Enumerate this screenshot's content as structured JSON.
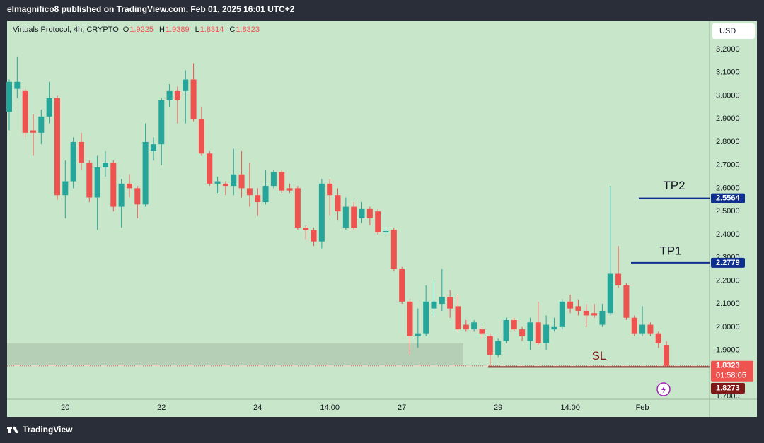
{
  "header": "elmagnifico8 published on TradingView.com, Feb 01, 2025 16:01 UTC+2",
  "footer_logo": "TradingView",
  "chart_data": {
    "type": "candlestick",
    "title": "Virtuals Protocol, 4h, CRYPTO",
    "ohlc_prefixes": [
      "O",
      "H",
      "L",
      "C"
    ],
    "currency": "USD",
    "countdown": "01:58:05",
    "up_color": "#26a69a",
    "down_color": "#ef5350",
    "grid": false,
    "categories": [
      null,
      null,
      null,
      null,
      null,
      null,
      null,
      "20",
      null,
      null,
      null,
      null,
      null,
      null,
      null,
      null,
      null,
      null,
      null,
      "22",
      null,
      null,
      null,
      null,
      null,
      null,
      null,
      null,
      null,
      null,
      null,
      "24",
      null,
      null,
      null,
      null,
      null,
      null,
      null,
      null,
      "14:00",
      null,
      null,
      null,
      null,
      null,
      null,
      null,
      null,
      "27",
      null,
      null,
      null,
      null,
      null,
      null,
      null,
      null,
      null,
      null,
      null,
      "29",
      null,
      null,
      null,
      null,
      null,
      null,
      null,
      null,
      "14:00",
      null,
      null,
      null,
      null,
      null,
      null,
      null,
      null,
      "Feb",
      null,
      null,
      null
    ],
    "open": [
      2.93,
      3.03,
      3.02,
      2.85,
      2.84,
      2.91,
      2.99,
      2.57,
      2.63,
      2.8,
      2.71,
      2.56,
      2.69,
      2.71,
      2.52,
      2.62,
      2.6,
      2.53,
      2.76,
      2.79,
      2.98,
      3.02,
      3.02,
      3.07,
      2.9,
      2.75,
      2.62,
      2.62,
      2.61,
      2.66,
      2.6,
      2.57,
      2.54,
      2.61,
      2.67,
      2.6,
      2.6,
      2.43,
      2.42,
      2.37,
      2.62,
      2.57,
      2.43,
      2.52,
      2.47,
      2.51,
      2.5,
      2.41,
      2.42,
      2.25,
      2.11,
      1.96,
      1.97,
      2.08,
      2.1,
      2.13,
      2.09,
      2.01,
      1.99,
      1.99,
      1.96,
      1.88,
      1.94,
      2.03,
      1.99,
      1.94,
      2.02,
      1.93,
      1.99,
      2.0,
      2.11,
      2.09,
      2.07,
      2.06,
      2.01,
      2.06,
      2.23,
      2.18,
      2.04,
      1.97,
      2.01,
      1.97,
      1.9225
    ],
    "high": [
      3.07,
      3.17,
      3.03,
      2.92,
      2.94,
      3.06,
      3.0,
      2.72,
      2.82,
      2.84,
      2.72,
      2.74,
      2.76,
      2.72,
      2.64,
      2.66,
      2.61,
      2.88,
      2.82,
      2.99,
      3.05,
      3.04,
      3.11,
      3.14,
      2.95,
      2.76,
      2.65,
      2.63,
      2.77,
      2.76,
      2.71,
      2.6,
      2.68,
      2.68,
      2.68,
      2.62,
      2.61,
      2.44,
      2.43,
      2.64,
      2.64,
      2.6,
      2.56,
      2.54,
      2.54,
      2.52,
      2.51,
      2.43,
      2.43,
      2.26,
      2.12,
      2.08,
      2.18,
      2.2,
      2.25,
      2.16,
      2.14,
      2.03,
      2.03,
      2.0,
      1.97,
      1.95,
      2.04,
      2.04,
      2.0,
      2.04,
      2.11,
      2.05,
      2.04,
      2.12,
      2.14,
      2.12,
      2.1,
      2.1,
      2.1,
      2.61,
      2.35,
      2.19,
      2.05,
      2.09,
      2.02,
      1.98,
      1.9389
    ],
    "low": [
      2.85,
      2.99,
      2.82,
      2.74,
      2.79,
      2.88,
      2.55,
      2.47,
      2.6,
      2.68,
      2.54,
      2.42,
      2.65,
      2.5,
      2.43,
      2.56,
      2.47,
      2.52,
      2.72,
      2.7,
      2.95,
      2.88,
      2.88,
      2.89,
      2.74,
      2.61,
      2.58,
      2.57,
      2.57,
      2.56,
      2.52,
      2.48,
      2.53,
      2.6,
      2.58,
      2.58,
      2.42,
      2.38,
      2.35,
      2.34,
      2.48,
      2.46,
      2.42,
      2.42,
      2.45,
      2.44,
      2.4,
      2.4,
      2.24,
      2.1,
      1.88,
      1.91,
      1.96,
      2.05,
      2.07,
      2.04,
      1.98,
      1.98,
      1.98,
      1.95,
      1.83,
      1.87,
      1.93,
      1.98,
      1.94,
      1.9,
      1.92,
      1.9,
      1.98,
      1.99,
      2.06,
      2.05,
      2.0,
      2.04,
      2.0,
      2.05,
      2.17,
      2.03,
      1.96,
      1.96,
      1.96,
      1.91,
      1.8314
    ],
    "close": [
      3.06,
      3.06,
      2.84,
      2.84,
      2.91,
      2.99,
      2.57,
      2.63,
      2.8,
      2.71,
      2.56,
      2.69,
      2.71,
      2.52,
      2.62,
      2.6,
      2.53,
      2.8,
      2.79,
      2.98,
      3.02,
      2.98,
      3.07,
      2.9,
      2.75,
      2.62,
      2.63,
      2.61,
      2.66,
      2.6,
      2.57,
      2.54,
      2.61,
      2.67,
      2.59,
      2.59,
      2.43,
      2.42,
      2.37,
      2.62,
      2.57,
      2.5,
      2.52,
      2.43,
      2.51,
      2.47,
      2.41,
      2.415,
      2.25,
      2.11,
      1.96,
      1.97,
      2.11,
      2.11,
      2.13,
      2.08,
      1.99,
      1.99,
      2.02,
      1.97,
      1.88,
      1.94,
      2.03,
      1.99,
      1.96,
      2.02,
      1.93,
      2.01,
      2.0,
      2.11,
      2.08,
      2.07,
      2.05,
      2.05,
      2.07,
      2.23,
      2.18,
      2.04,
      1.97,
      2.01,
      1.97,
      1.93,
      1.8323
    ],
    "ylim": [
      1.688,
      3.322
    ],
    "yticks": [
      {
        "value": 3.2,
        "label": "3.2000"
      },
      {
        "value": 3.1,
        "label": "3.1000"
      },
      {
        "value": 3.0,
        "label": "3.0000"
      },
      {
        "value": 2.9,
        "label": "2.9000"
      },
      {
        "value": 2.8,
        "label": "2.8000"
      },
      {
        "value": 2.7,
        "label": "2.7000"
      },
      {
        "value": 2.6,
        "label": "2.6000"
      },
      {
        "value": 2.5,
        "label": "2.5000"
      },
      {
        "value": 2.4,
        "label": "2.4000"
      },
      {
        "value": 2.3,
        "label": "2.3000"
      },
      {
        "value": 2.2,
        "label": "2.2000"
      },
      {
        "value": 2.1,
        "label": "2.1000"
      },
      {
        "value": 2.0,
        "label": "2.0000"
      },
      {
        "value": 1.9,
        "label": "1.9000"
      },
      {
        "value": 1.8,
        "label": "1.8000"
      },
      {
        "value": 1.7,
        "label": "1.7000"
      }
    ],
    "levels": [
      {
        "label": "TP2",
        "value": 2.5564,
        "color": "#0e2f8f"
      },
      {
        "label": "TP1",
        "value": 2.2779,
        "color": "#0e2f8f"
      },
      {
        "label": "SL",
        "value": 1.8273,
        "color": "#801818"
      }
    ],
    "zone": {
      "top": 1.93,
      "bottom": 1.835,
      "color": "#b5ceb6"
    }
  }
}
